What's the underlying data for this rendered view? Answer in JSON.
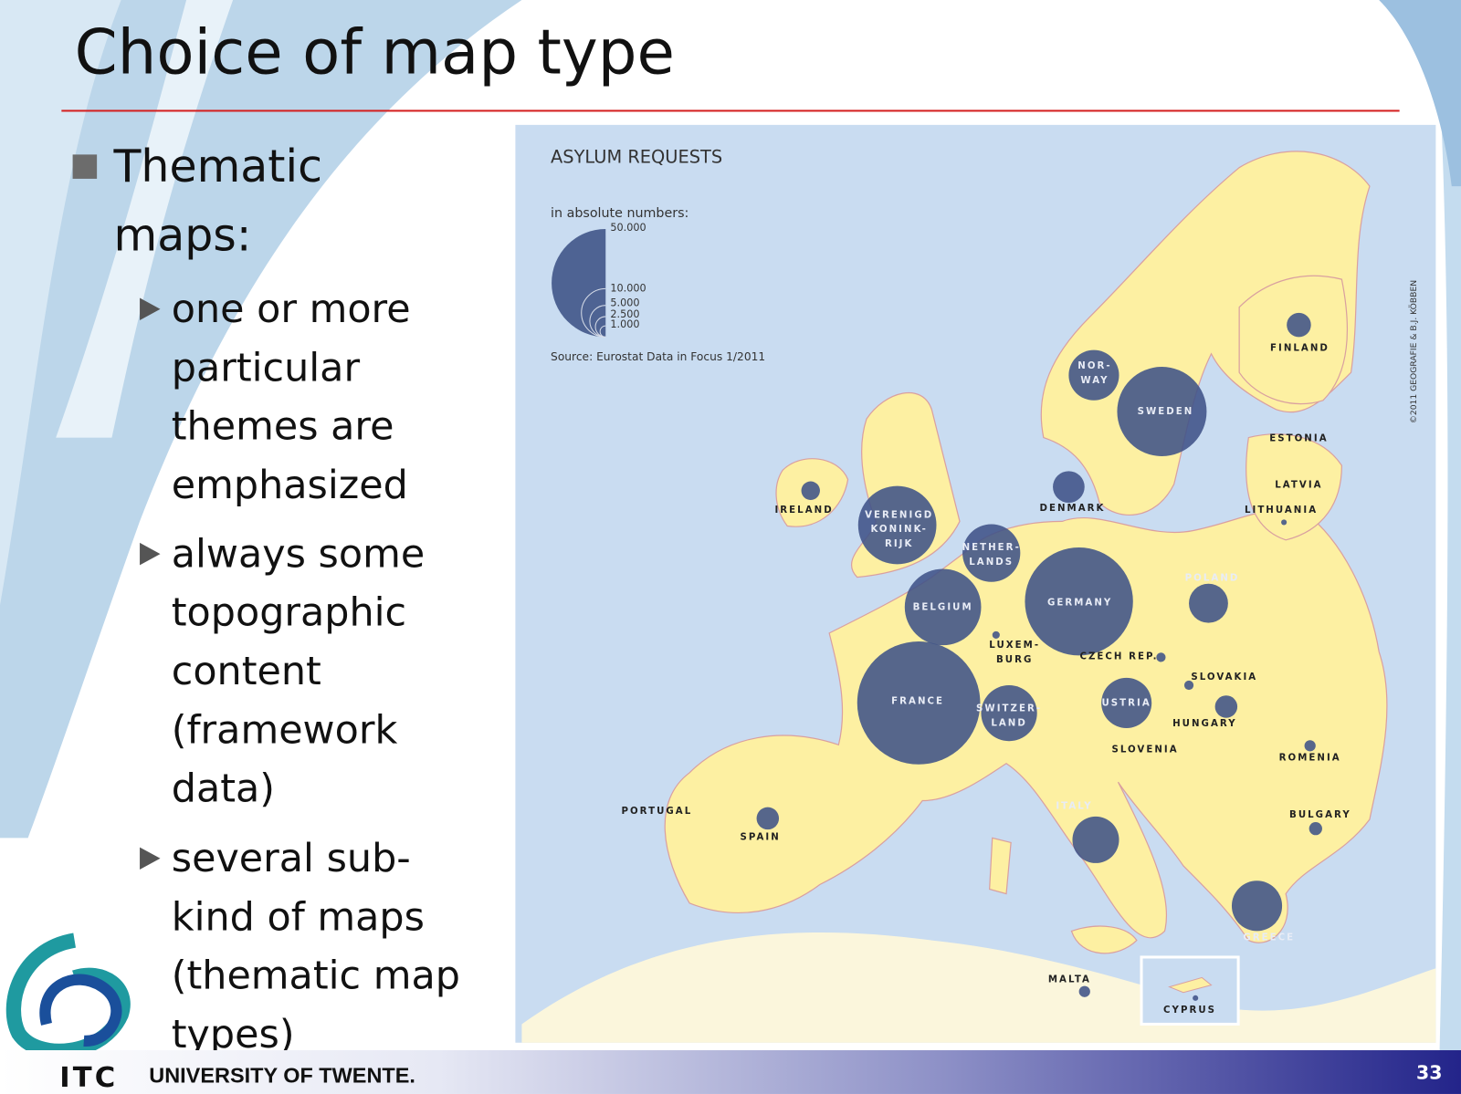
{
  "header": {
    "title": "Choice of map type"
  },
  "bullets": {
    "main": "Thematic maps:",
    "sub": [
      "one or more particular themes are emphasized",
      "always some topographic content (framework data)",
      "several sub-kind of maps (thematic map types)"
    ]
  },
  "map": {
    "title": "ASYLUM REQUESTS",
    "legend_caption": "in absolute numbers:",
    "legend_labels": [
      "50.000",
      "10.000",
      "5.000",
      "2.500",
      "1.000"
    ],
    "source": "Source: Eurostat Data in Focus 1/2011",
    "copyright": "©2011 GEOGRAFIE & B.J. KÖBBEN",
    "countries": [
      {
        "lines": [
          "FINLAND"
        ]
      },
      {
        "lines": [
          "NOR-",
          "WAY"
        ]
      },
      {
        "lines": [
          "SWEDEN"
        ]
      },
      {
        "lines": [
          "ESTONIA"
        ]
      },
      {
        "lines": [
          "LATVIA"
        ]
      },
      {
        "lines": [
          "LITHUANIA"
        ]
      },
      {
        "lines": [
          "DENMARK"
        ]
      },
      {
        "lines": [
          "IRELAND"
        ]
      },
      {
        "lines": [
          "VERENIGD",
          "KONINK-",
          "RIJK"
        ]
      },
      {
        "lines": [
          "NETHER-",
          "LANDS"
        ]
      },
      {
        "lines": [
          "GERMANY"
        ]
      },
      {
        "lines": [
          "POLAND"
        ]
      },
      {
        "lines": [
          "BELGIUM"
        ]
      },
      {
        "lines": [
          "LUXEM-",
          "BURG"
        ]
      },
      {
        "lines": [
          "CZECH REP."
        ]
      },
      {
        "lines": [
          "SLOVAKIA"
        ]
      },
      {
        "lines": [
          "FRANCE"
        ]
      },
      {
        "lines": [
          "SWITZER-",
          "LAND"
        ]
      },
      {
        "lines": [
          "USTRIA"
        ]
      },
      {
        "lines": [
          "HUNGARY"
        ]
      },
      {
        "lines": [
          "SLOVENIA"
        ]
      },
      {
        "lines": [
          "ROMENIA"
        ]
      },
      {
        "lines": [
          "PORTUGAL"
        ]
      },
      {
        "lines": [
          "SPAIN"
        ]
      },
      {
        "lines": [
          "ITALY"
        ]
      },
      {
        "lines": [
          "BULGARY"
        ]
      },
      {
        "lines": [
          "GREECE"
        ]
      },
      {
        "lines": [
          "MALTA"
        ]
      },
      {
        "lines": [
          "CYPRUS"
        ]
      }
    ]
  },
  "footer": {
    "logo": "ITC",
    "university": "UNIVERSITY OF TWENTE.",
    "page": "33"
  }
}
